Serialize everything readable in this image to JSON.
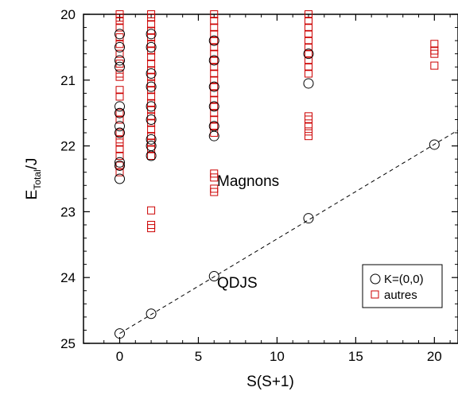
{
  "chart_data": {
    "type": "scatter",
    "xlabel": "S(S+1)",
    "ylabel_main": "E",
    "ylabel_sub": "Total",
    "ylabel_tail": "/J",
    "xlim": [
      -2.3,
      21.5
    ],
    "ylim": [
      25,
      20
    ],
    "y_inverted": true,
    "x_ticks": [
      0,
      5,
      10,
      15,
      20
    ],
    "y_ticks": [
      20,
      21,
      22,
      23,
      24,
      25
    ],
    "x_tick_labels": [
      "0",
      "5",
      "10",
      "15",
      "20"
    ],
    "y_tick_labels": [
      "20",
      "21",
      "22",
      "23",
      "24",
      "25"
    ],
    "grid": false,
    "legend_position": "bottom-right",
    "annotations": [
      {
        "text": "Magnons",
        "x": 7.6,
        "y": 22.55
      },
      {
        "text": "QDJS",
        "x": 7.6,
        "y": 24.1
      }
    ],
    "fit_line": {
      "style": "dashed",
      "x": [
        0,
        21.5
      ],
      "y": [
        24.85,
        21.76
      ]
    },
    "series": [
      {
        "name": "K=(0,0)",
        "marker": "circle",
        "color": "#000000",
        "points": [
          [
            0,
            24.85
          ],
          [
            0,
            22.5
          ],
          [
            0,
            22.3
          ],
          [
            0,
            22.25
          ],
          [
            0,
            21.8
          ],
          [
            0,
            21.7
          ],
          [
            0,
            21.5
          ],
          [
            0,
            21.4
          ],
          [
            0,
            20.8
          ],
          [
            0,
            20.7
          ],
          [
            0,
            20.5
          ],
          [
            0,
            20.3
          ],
          [
            2,
            24.55
          ],
          [
            2,
            22.15
          ],
          [
            2,
            22.0
          ],
          [
            2,
            21.9
          ],
          [
            2,
            21.6
          ],
          [
            2,
            21.4
          ],
          [
            2,
            21.1
          ],
          [
            2,
            20.9
          ],
          [
            2,
            20.5
          ],
          [
            2,
            20.3
          ],
          [
            6,
            23.98
          ],
          [
            6,
            21.85
          ],
          [
            6,
            21.7
          ],
          [
            6,
            21.4
          ],
          [
            6,
            21.1
          ],
          [
            6,
            20.7
          ],
          [
            6,
            20.4
          ],
          [
            12,
            23.1
          ],
          [
            12,
            21.05
          ],
          [
            12,
            20.6
          ],
          [
            20,
            21.98
          ]
        ]
      },
      {
        "name": "autres",
        "marker": "square",
        "color": "#cc0000",
        "points": [
          [
            0,
            22.4
          ],
          [
            0,
            22.3
          ],
          [
            0,
            22.15
          ],
          [
            0,
            22.05
          ],
          [
            0,
            21.95
          ],
          [
            0,
            21.9
          ],
          [
            0,
            21.8
          ],
          [
            0,
            21.6
          ],
          [
            0,
            21.5
          ],
          [
            0,
            21.25
          ],
          [
            0,
            21.15
          ],
          [
            0,
            20.95
          ],
          [
            0,
            20.9
          ],
          [
            0,
            20.75
          ],
          [
            0,
            20.6
          ],
          [
            0,
            20.45
          ],
          [
            0,
            20.35
          ],
          [
            0,
            20.2
          ],
          [
            0,
            20.1
          ],
          [
            0,
            20.05
          ],
          [
            0,
            20.0
          ],
          [
            2,
            23.25
          ],
          [
            2,
            23.2
          ],
          [
            2,
            22.98
          ],
          [
            2,
            22.15
          ],
          [
            2,
            22.05
          ],
          [
            2,
            21.95
          ],
          [
            2,
            21.85
          ],
          [
            2,
            21.75
          ],
          [
            2,
            21.65
          ],
          [
            2,
            21.55
          ],
          [
            2,
            21.45
          ],
          [
            2,
            21.35
          ],
          [
            2,
            21.25
          ],
          [
            2,
            21.15
          ],
          [
            2,
            21.05
          ],
          [
            2,
            20.95
          ],
          [
            2,
            20.85
          ],
          [
            2,
            20.75
          ],
          [
            2,
            20.65
          ],
          [
            2,
            20.55
          ],
          [
            2,
            20.45
          ],
          [
            2,
            20.35
          ],
          [
            2,
            20.25
          ],
          [
            2,
            20.15
          ],
          [
            2,
            20.05
          ],
          [
            2,
            20.0
          ],
          [
            6,
            22.7
          ],
          [
            6,
            22.65
          ],
          [
            6,
            22.48
          ],
          [
            6,
            22.42
          ],
          [
            6,
            21.8
          ],
          [
            6,
            21.7
          ],
          [
            6,
            21.6
          ],
          [
            6,
            21.5
          ],
          [
            6,
            21.4
          ],
          [
            6,
            21.3
          ],
          [
            6,
            21.2
          ],
          [
            6,
            21.1
          ],
          [
            6,
            21.0
          ],
          [
            6,
            20.9
          ],
          [
            6,
            20.8
          ],
          [
            6,
            20.7
          ],
          [
            6,
            20.6
          ],
          [
            6,
            20.5
          ],
          [
            6,
            20.4
          ],
          [
            6,
            20.3
          ],
          [
            6,
            20.2
          ],
          [
            6,
            20.1
          ],
          [
            6,
            20.0
          ],
          [
            12,
            21.85
          ],
          [
            12,
            21.78
          ],
          [
            12,
            21.7
          ],
          [
            12,
            21.6
          ],
          [
            12,
            21.55
          ],
          [
            12,
            20.9
          ],
          [
            12,
            20.8
          ],
          [
            12,
            20.7
          ],
          [
            12,
            20.6
          ],
          [
            12,
            20.5
          ],
          [
            12,
            20.4
          ],
          [
            12,
            20.3
          ],
          [
            12,
            20.2
          ],
          [
            12,
            20.1
          ],
          [
            12,
            20.0
          ],
          [
            20,
            20.78
          ],
          [
            20,
            20.6
          ],
          [
            20,
            20.55
          ],
          [
            20,
            20.45
          ]
        ]
      }
    ]
  }
}
